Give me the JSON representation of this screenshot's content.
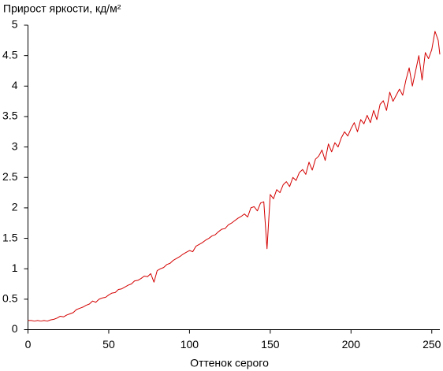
{
  "chart_data": {
    "type": "line",
    "title": "Прирост яркости, кд/м²",
    "x_label": "Оттенок серого",
    "xlim": [
      0,
      255
    ],
    "xticks": [
      0,
      50,
      100,
      150,
      200,
      250
    ],
    "ylim": [
      0,
      5
    ],
    "yticks": [
      0,
      0.5,
      1,
      1.5,
      2,
      2.5,
      3,
      3.5,
      4,
      4.5,
      5
    ],
    "grid": false,
    "x": [
      0,
      2,
      4,
      6,
      8,
      10,
      12,
      14,
      16,
      18,
      20,
      22,
      24,
      26,
      28,
      30,
      32,
      34,
      36,
      38,
      40,
      42,
      44,
      46,
      48,
      50,
      52,
      54,
      56,
      58,
      60,
      62,
      64,
      66,
      68,
      70,
      72,
      74,
      76,
      78,
      80,
      82,
      84,
      86,
      88,
      90,
      92,
      94,
      96,
      98,
      100,
      102,
      104,
      106,
      108,
      110,
      112,
      114,
      116,
      118,
      120,
      122,
      124,
      126,
      128,
      130,
      132,
      134,
      136,
      138,
      140,
      142,
      144,
      146,
      148,
      150,
      152,
      154,
      156,
      158,
      160,
      162,
      164,
      166,
      168,
      170,
      172,
      174,
      176,
      178,
      180,
      182,
      184,
      186,
      188,
      190,
      192,
      194,
      196,
      198,
      200,
      202,
      204,
      206,
      208,
      210,
      212,
      214,
      216,
      218,
      220,
      222,
      224,
      226,
      228,
      230,
      232,
      234,
      236,
      238,
      240,
      242,
      244,
      246,
      248,
      250,
      252,
      254,
      255
    ],
    "series": [
      {
        "color": "#d40000",
        "values": [
          0.15,
          0.15,
          0.14,
          0.15,
          0.14,
          0.15,
          0.14,
          0.16,
          0.17,
          0.19,
          0.22,
          0.21,
          0.24,
          0.26,
          0.28,
          0.33,
          0.35,
          0.37,
          0.4,
          0.42,
          0.47,
          0.45,
          0.5,
          0.52,
          0.53,
          0.57,
          0.6,
          0.61,
          0.66,
          0.67,
          0.7,
          0.73,
          0.75,
          0.8,
          0.81,
          0.84,
          0.88,
          0.87,
          0.92,
          0.78,
          0.97,
          1.0,
          1.02,
          1.07,
          1.09,
          1.14,
          1.17,
          1.2,
          1.24,
          1.27,
          1.3,
          1.28,
          1.37,
          1.4,
          1.43,
          1.47,
          1.5,
          1.54,
          1.56,
          1.61,
          1.65,
          1.66,
          1.72,
          1.75,
          1.79,
          1.83,
          1.86,
          1.9,
          1.85,
          2.0,
          2.02,
          1.95,
          2.08,
          2.1,
          1.33,
          2.22,
          2.15,
          2.3,
          2.25,
          2.38,
          2.43,
          2.35,
          2.5,
          2.45,
          2.58,
          2.63,
          2.55,
          2.75,
          2.62,
          2.8,
          2.85,
          2.95,
          2.78,
          3.05,
          2.92,
          3.07,
          3.0,
          3.15,
          3.25,
          3.18,
          3.3,
          3.4,
          3.25,
          3.45,
          3.38,
          3.52,
          3.4,
          3.6,
          3.45,
          3.7,
          3.76,
          3.6,
          3.9,
          3.75,
          3.85,
          3.95,
          3.85,
          4.1,
          4.3,
          4.0,
          4.25,
          4.5,
          4.1,
          4.55,
          4.45,
          4.6,
          4.9,
          4.75,
          4.52
        ]
      }
    ]
  }
}
